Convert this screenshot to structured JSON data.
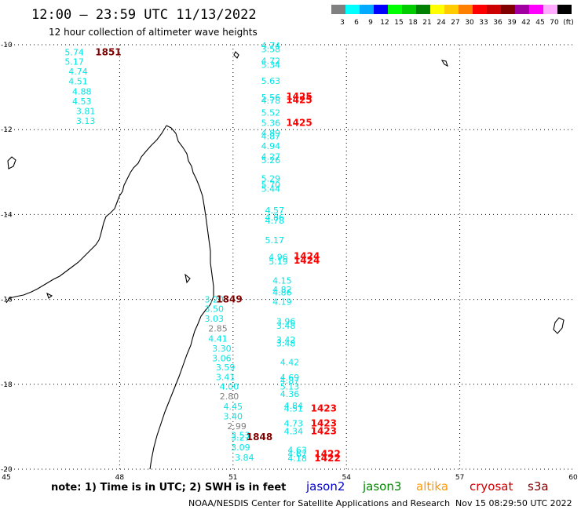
{
  "header": {
    "title": "12:00 – 23:59 UTC 11/13/2022",
    "subtitle": "12 hour collection of altimeter wave heights"
  },
  "color_scale": {
    "labels": [
      "3",
      "6",
      "9",
      "12",
      "15",
      "18",
      "21",
      "24",
      "27",
      "30",
      "33",
      "36",
      "39",
      "42",
      "45",
      "70",
      "(ft)"
    ],
    "colors": [
      "#808080",
      "#00ffff",
      "#00aaff",
      "#0000ff",
      "#00ff00",
      "#00cc00",
      "#008000",
      "#ffff00",
      "#ffcc00",
      "#ff8000",
      "#ff0000",
      "#cc0000",
      "#800000",
      "#a000a0",
      "#ff00ff",
      "#ffaaff",
      "#000000"
    ]
  },
  "axes": {
    "x_ticks": [
      "45",
      "48",
      "51",
      "54",
      "57",
      "60"
    ],
    "y_ticks": [
      "-10",
      "-12",
      "-14",
      "-16",
      "-18",
      "-20"
    ]
  },
  "map": {
    "lon_min": 45,
    "lon_max": 60,
    "lat_min": -20,
    "lat_max": -10,
    "tracks": [
      {
        "label_color": "#00e6e6",
        "points": [
          {
            "lon": 46.8,
            "lat": -10.18,
            "v": "5.74"
          },
          {
            "lon": 46.8,
            "lat": -10.4,
            "v": "5.17"
          },
          {
            "lon": 46.9,
            "lat": -10.63,
            "v": "4.74"
          },
          {
            "lon": 46.9,
            "lat": -10.86,
            "v": "4.51"
          },
          {
            "lon": 47.0,
            "lat": -11.1,
            "v": "4.88"
          },
          {
            "lon": 47.0,
            "lat": -11.33,
            "v": "4.53"
          },
          {
            "lon": 47.1,
            "lat": -11.56,
            "v": "3.81"
          },
          {
            "lon": 47.1,
            "lat": -11.79,
            "v": "3.13"
          }
        ]
      },
      {
        "label_color": "#00e6e6",
        "points": [
          {
            "lon": 50.5,
            "lat": -16.0,
            "v": "3.20"
          },
          {
            "lon": 50.5,
            "lat": -16.22,
            "v": "3.50"
          },
          {
            "lon": 50.5,
            "lat": -16.45,
            "v": "3.03"
          },
          {
            "lon": 50.6,
            "lat": -16.68,
            "v": "2.85",
            "c": "#808080"
          },
          {
            "lon": 50.6,
            "lat": -16.92,
            "v": "4.41"
          },
          {
            "lon": 50.7,
            "lat": -17.15,
            "v": "3.30"
          },
          {
            "lon": 50.7,
            "lat": -17.38,
            "v": "3.06"
          },
          {
            "lon": 50.8,
            "lat": -17.6,
            "v": "3.59"
          },
          {
            "lon": 50.8,
            "lat": -17.83,
            "v": "3.41"
          },
          {
            "lon": 50.9,
            "lat": -18.05,
            "v": "4.00"
          },
          {
            "lon": 50.9,
            "lat": -18.28,
            "v": "2.80",
            "c": "#808080"
          },
          {
            "lon": 51.0,
            "lat": -18.52,
            "v": "4.45"
          },
          {
            "lon": 51.0,
            "lat": -18.75,
            "v": "3.40"
          },
          {
            "lon": 51.1,
            "lat": -18.98,
            "v": "2.99",
            "c": "#808080"
          },
          {
            "lon": 51.2,
            "lat": -19.2,
            "v": "3.53"
          },
          {
            "lon": 51.2,
            "lat": -19.25,
            "v": "3.27"
          },
          {
            "lon": 51.2,
            "lat": -19.48,
            "v": "3.09"
          },
          {
            "lon": 51.3,
            "lat": -19.72,
            "v": "3.84"
          }
        ]
      },
      {
        "label_color": "#00e6e6",
        "points": [
          {
            "lon": 52.0,
            "lat": -10.02,
            "v": "4.74"
          },
          {
            "lon": 52.0,
            "lat": -10.1,
            "v": "3.58"
          },
          {
            "lon": 52.0,
            "lat": -10.38,
            "v": "4.72"
          },
          {
            "lon": 52.0,
            "lat": -10.47,
            "v": "5.34"
          },
          {
            "lon": 52.0,
            "lat": -10.85,
            "v": "5.63"
          },
          {
            "lon": 52.0,
            "lat": -11.24,
            "v": "5.56"
          },
          {
            "lon": 52.0,
            "lat": -11.31,
            "v": "4.78"
          },
          {
            "lon": 52.0,
            "lat": -11.6,
            "v": "5.52"
          },
          {
            "lon": 52.0,
            "lat": -11.84,
            "v": "5.36"
          },
          {
            "lon": 52.0,
            "lat": -12.08,
            "v": "4.89"
          },
          {
            "lon": 52.0,
            "lat": -12.15,
            "v": "4.87"
          },
          {
            "lon": 52.0,
            "lat": -12.38,
            "v": "4.94"
          },
          {
            "lon": 52.0,
            "lat": -12.63,
            "v": "4.27"
          },
          {
            "lon": 52.0,
            "lat": -12.72,
            "v": "5.26"
          },
          {
            "lon": 52.0,
            "lat": -13.15,
            "v": "5.29"
          },
          {
            "lon": 52.0,
            "lat": -13.3,
            "v": "5.70"
          },
          {
            "lon": 52.0,
            "lat": -13.39,
            "v": "5.44"
          },
          {
            "lon": 52.1,
            "lat": -13.9,
            "v": "4.57"
          },
          {
            "lon": 52.1,
            "lat": -14.07,
            "v": "4.86"
          },
          {
            "lon": 52.1,
            "lat": -14.14,
            "v": "4.78"
          },
          {
            "lon": 52.1,
            "lat": -14.6,
            "v": "5.17"
          },
          {
            "lon": 52.2,
            "lat": -15.0,
            "v": "4.96"
          },
          {
            "lon": 52.2,
            "lat": -15.1,
            "v": "5.19"
          },
          {
            "lon": 52.3,
            "lat": -15.55,
            "v": "4.15"
          },
          {
            "lon": 52.3,
            "lat": -15.77,
            "v": "4.82"
          },
          {
            "lon": 52.3,
            "lat": -15.83,
            "v": "4.86"
          },
          {
            "lon": 52.3,
            "lat": -16.05,
            "v": "4.19"
          },
          {
            "lon": 52.4,
            "lat": -16.52,
            "v": "3.96"
          },
          {
            "lon": 52.4,
            "lat": -16.62,
            "v": "3.48"
          },
          {
            "lon": 52.4,
            "lat": -16.95,
            "v": "3.42"
          },
          {
            "lon": 52.4,
            "lat": -17.03,
            "v": "3.48"
          },
          {
            "lon": 52.5,
            "lat": -17.48,
            "v": "4.42"
          },
          {
            "lon": 52.5,
            "lat": -17.84,
            "v": "4.69"
          },
          {
            "lon": 52.5,
            "lat": -17.91,
            "v": "4.87"
          },
          {
            "lon": 52.5,
            "lat": -18.05,
            "v": "5.13"
          },
          {
            "lon": 52.5,
            "lat": -18.23,
            "v": "4.36"
          },
          {
            "lon": 52.6,
            "lat": -18.5,
            "v": "4.84"
          },
          {
            "lon": 52.6,
            "lat": -18.57,
            "v": "4.51"
          },
          {
            "lon": 52.6,
            "lat": -18.92,
            "v": "4.73"
          },
          {
            "lon": 52.6,
            "lat": -19.1,
            "v": "4.34"
          },
          {
            "lon": 52.7,
            "lat": -19.55,
            "v": "4.63"
          },
          {
            "lon": 52.7,
            "lat": -19.64,
            "v": "4.67"
          },
          {
            "lon": 52.7,
            "lat": -19.74,
            "v": "4.18"
          }
        ]
      }
    ],
    "time_labels": [
      {
        "lon": 47.7,
        "lat": -10.18,
        "v": "1851",
        "c": "#800000"
      },
      {
        "lon": 50.9,
        "lat": -16.0,
        "v": "1849",
        "c": "#800000"
      },
      {
        "lon": 51.7,
        "lat": -19.24,
        "v": "1848",
        "c": "#800000"
      },
      {
        "lon": 52.75,
        "lat": -11.22,
        "v": "1425",
        "c": "#ff0000"
      },
      {
        "lon": 52.75,
        "lat": -11.3,
        "v": "1425",
        "c": "#ff0000"
      },
      {
        "lon": 52.75,
        "lat": -11.84,
        "v": "1425",
        "c": "#ff0000"
      },
      {
        "lon": 52.95,
        "lat": -14.98,
        "v": "1424",
        "c": "#ff0000"
      },
      {
        "lon": 52.95,
        "lat": -15.08,
        "v": "1424",
        "c": "#ff0000"
      },
      {
        "lon": 53.4,
        "lat": -18.57,
        "v": "1423",
        "c": "#ff0000"
      },
      {
        "lon": 53.4,
        "lat": -18.92,
        "v": "1423",
        "c": "#ff0000"
      },
      {
        "lon": 53.4,
        "lat": -19.1,
        "v": "1423",
        "c": "#ff0000"
      },
      {
        "lon": 53.5,
        "lat": -19.64,
        "v": "1422",
        "c": "#ff0000"
      },
      {
        "lon": 53.5,
        "lat": -19.74,
        "v": "1422",
        "c": "#ff0000"
      }
    ]
  },
  "footer": {
    "note": "note:  1) Time is in UTC;  2) SWH is in feet",
    "satellites": [
      {
        "name": "jason2",
        "color": "#0000cc"
      },
      {
        "name": "jason3",
        "color": "#008800"
      },
      {
        "name": "altika",
        "color": "#ff9900"
      },
      {
        "name": "cryosat",
        "color": "#cc0000"
      },
      {
        "name": "s3a",
        "color": "#800000"
      }
    ],
    "credit": "NOAA/NESDIS Center for Satellite Applications and Research",
    "timestamp": "Nov 15 08:29:50 UTC 2022"
  }
}
